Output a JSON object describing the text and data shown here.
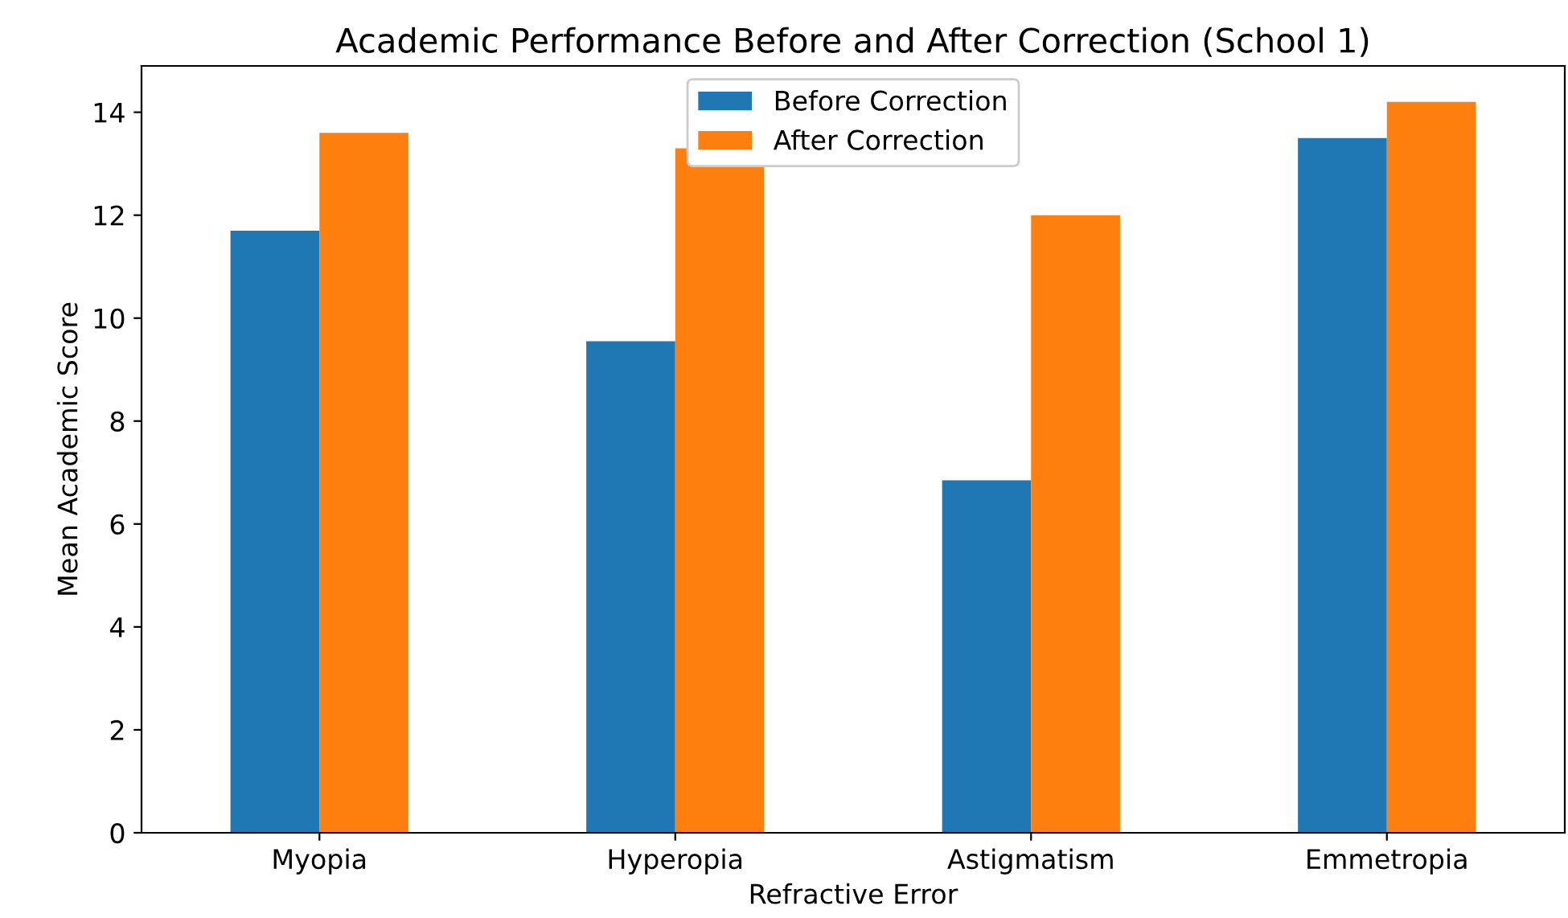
{
  "chart_data": {
    "type": "bar",
    "title": "Academic Performance Before and After Correction (School 1)",
    "xlabel": "Refractive Error",
    "ylabel": "Mean Academic Score",
    "categories": [
      "Myopia",
      "Hyperopia",
      "Astigmatism",
      "Emmetropia"
    ],
    "series": [
      {
        "name": "Before Correction",
        "color": "#1f77b4",
        "values": [
          11.7,
          9.55,
          6.85,
          13.5
        ]
      },
      {
        "name": "After Correction",
        "color": "#ff7f0e",
        "values": [
          13.6,
          13.3,
          12.0,
          14.2
        ]
      }
    ],
    "ylim": [
      0,
      14.9
    ],
    "yticks": [
      0,
      2,
      4,
      6,
      8,
      10,
      12,
      14
    ],
    "grid": false,
    "legend": "top"
  }
}
